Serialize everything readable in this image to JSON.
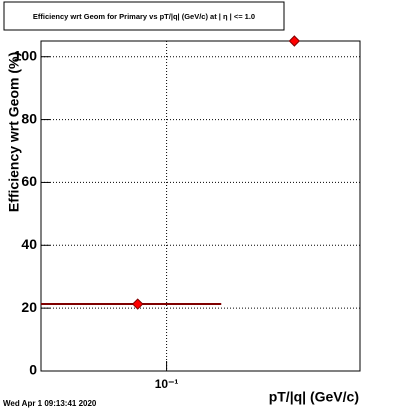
{
  "chart_data": {
    "type": "scatter",
    "title": "Efficiency wrt Geom for Primary vs pT/|q| (GeV/c) at | η | <= 1.0",
    "x_label": "pT/|q| (GeV/c)",
    "y_label": "Efficiency wrt Geom (%)",
    "timestamp": "Wed Apr  1 09:13:41 2020",
    "log_x": true,
    "grid": true,
    "xlim": [
      0.04,
      0.41
    ],
    "xticks": [
      {
        "value": 0.1,
        "label": "10⁻¹"
      }
    ],
    "ylim": [
      0,
      105
    ],
    "yticks": [
      0,
      20,
      40,
      60,
      80,
      100
    ],
    "series": [
      {
        "color": "#ff0000",
        "error_color": "#800000",
        "x": [
          0.081,
          0.254
        ],
        "values": [
          21.3,
          105
        ],
        "x_low": [
          0.04,
          null
        ],
        "x_high": [
          0.149,
          null
        ]
      }
    ]
  }
}
